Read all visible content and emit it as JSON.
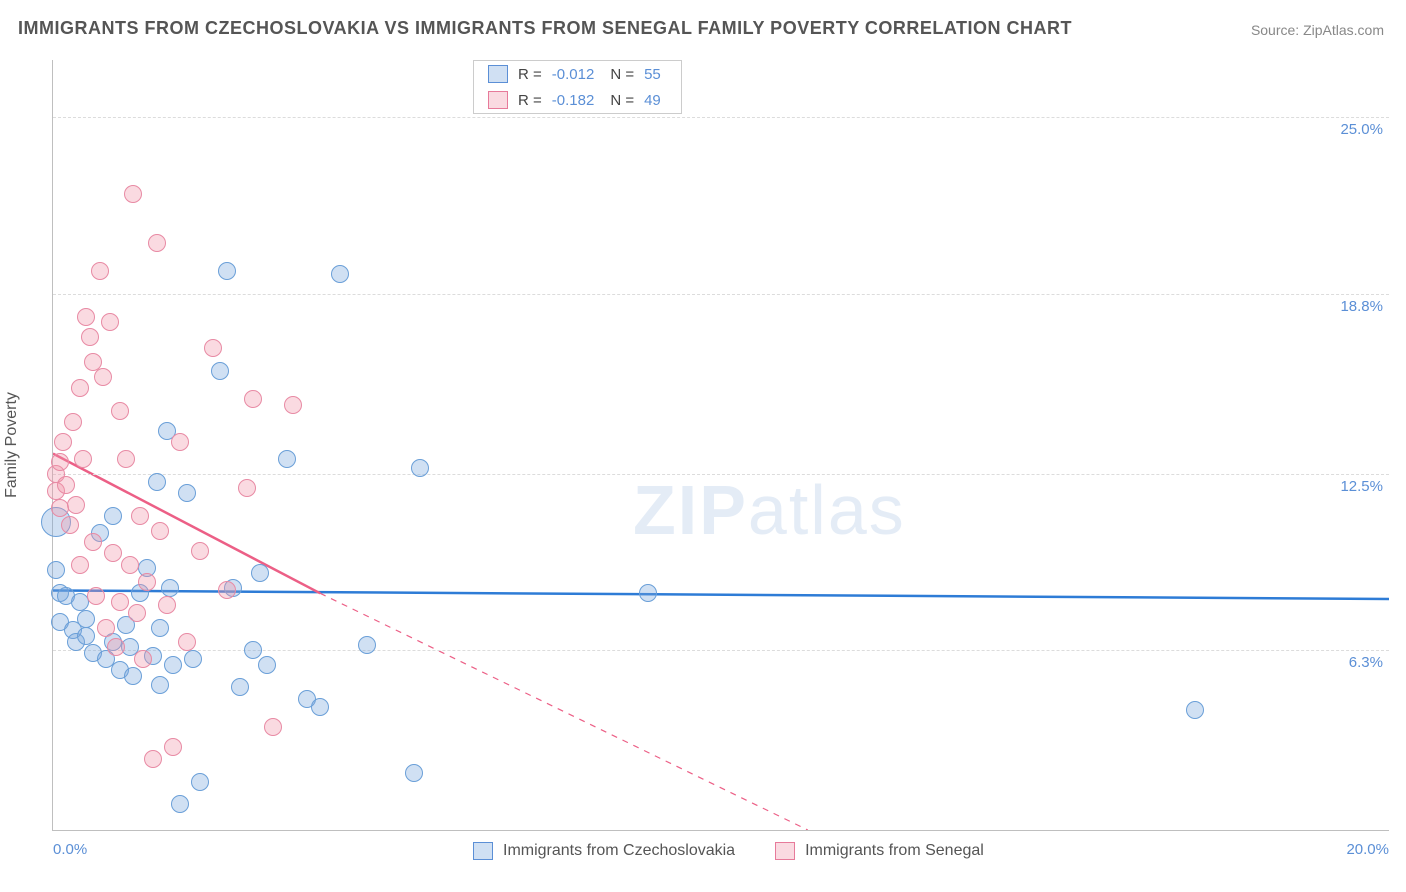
{
  "title": "IMMIGRANTS FROM CZECHOSLOVAKIA VS IMMIGRANTS FROM SENEGAL FAMILY POVERTY CORRELATION CHART",
  "source": "Source: ZipAtlas.com",
  "watermark_bold": "ZIP",
  "watermark_thin": "atlas",
  "y_axis_title": "Family Poverty",
  "chart": {
    "type": "scatter",
    "background_color": "#ffffff",
    "grid_color": "#dcdcdc",
    "axis_color": "#bfbfbf",
    "tick_label_color": "#5b8fd6",
    "tick_fontsize": 15,
    "xlim": [
      0,
      20
    ],
    "ylim": [
      0,
      27
    ],
    "x_ticks": [
      {
        "value": 0,
        "label": "0.0%"
      },
      {
        "value": 20,
        "label": "20.0%"
      }
    ],
    "y_ticks": [
      {
        "value": 6.3,
        "label": "6.3%"
      },
      {
        "value": 12.5,
        "label": "12.5%"
      },
      {
        "value": 18.8,
        "label": "18.8%"
      },
      {
        "value": 25.0,
        "label": "25.0%"
      }
    ],
    "marker_radius": 8,
    "series": [
      {
        "key": "czech",
        "label": "Immigrants from Czechoslovakia",
        "color_fill": "rgba(120,165,220,0.35)",
        "color_stroke": "#6a9fd8",
        "trend_color": "#2e7cd6",
        "trend_width": 2.5,
        "R": "-0.012",
        "N": "55",
        "trend": {
          "x1": 0,
          "y1": 8.4,
          "x2": 20,
          "y2": 8.1,
          "dash": "none"
        },
        "points": [
          {
            "x": 0.05,
            "y": 10.8,
            "r": 14
          },
          {
            "x": 0.05,
            "y": 9.1
          },
          {
            "x": 0.1,
            "y": 8.3
          },
          {
            "x": 0.1,
            "y": 7.3
          },
          {
            "x": 0.2,
            "y": 8.2
          },
          {
            "x": 0.3,
            "y": 7.0
          },
          {
            "x": 0.35,
            "y": 6.6
          },
          {
            "x": 0.4,
            "y": 8.0
          },
          {
            "x": 0.5,
            "y": 6.8
          },
          {
            "x": 0.5,
            "y": 7.4
          },
          {
            "x": 0.6,
            "y": 6.2
          },
          {
            "x": 0.7,
            "y": 10.4
          },
          {
            "x": 0.8,
            "y": 6.0
          },
          {
            "x": 0.9,
            "y": 11.0
          },
          {
            "x": 0.9,
            "y": 6.6
          },
          {
            "x": 1.0,
            "y": 5.6
          },
          {
            "x": 1.1,
            "y": 7.2
          },
          {
            "x": 1.15,
            "y": 6.4
          },
          {
            "x": 1.2,
            "y": 5.4
          },
          {
            "x": 1.3,
            "y": 8.3
          },
          {
            "x": 1.4,
            "y": 9.2
          },
          {
            "x": 1.5,
            "y": 6.1
          },
          {
            "x": 1.55,
            "y": 12.2
          },
          {
            "x": 1.6,
            "y": 5.1
          },
          {
            "x": 1.6,
            "y": 7.1
          },
          {
            "x": 1.7,
            "y": 14.0
          },
          {
            "x": 1.75,
            "y": 8.5
          },
          {
            "x": 1.8,
            "y": 5.8
          },
          {
            "x": 1.9,
            "y": 0.9
          },
          {
            "x": 2.0,
            "y": 11.8
          },
          {
            "x": 2.1,
            "y": 6.0
          },
          {
            "x": 2.2,
            "y": 1.7
          },
          {
            "x": 2.5,
            "y": 16.1
          },
          {
            "x": 2.6,
            "y": 19.6
          },
          {
            "x": 2.7,
            "y": 8.5
          },
          {
            "x": 2.8,
            "y": 5.0
          },
          {
            "x": 3.0,
            "y": 6.3
          },
          {
            "x": 3.1,
            "y": 9.0
          },
          {
            "x": 3.2,
            "y": 5.8
          },
          {
            "x": 3.5,
            "y": 13.0
          },
          {
            "x": 3.8,
            "y": 4.6
          },
          {
            "x": 4.0,
            "y": 4.3
          },
          {
            "x": 4.3,
            "y": 19.5
          },
          {
            "x": 4.7,
            "y": 6.5
          },
          {
            "x": 5.4,
            "y": 2.0
          },
          {
            "x": 5.5,
            "y": 12.7
          },
          {
            "x": 8.9,
            "y": 8.3
          },
          {
            "x": 17.1,
            "y": 4.2
          }
        ]
      },
      {
        "key": "senegal",
        "label": "Immigrants from Senegal",
        "color_fill": "rgba(240,150,170,0.35)",
        "color_stroke": "#e88aa4",
        "trend_color": "#ec5f86",
        "trend_width": 2.5,
        "R": "-0.182",
        "N": "49",
        "trend_solid": {
          "x1": 0,
          "y1": 13.2,
          "x2": 4.0,
          "y2": 8.3
        },
        "trend_dash": {
          "x1": 4.0,
          "y1": 8.3,
          "x2": 11.3,
          "y2": 0.0
        },
        "points": [
          {
            "x": 0.05,
            "y": 12.5
          },
          {
            "x": 0.05,
            "y": 11.9
          },
          {
            "x": 0.1,
            "y": 12.9
          },
          {
            "x": 0.1,
            "y": 11.3
          },
          {
            "x": 0.15,
            "y": 13.6
          },
          {
            "x": 0.2,
            "y": 12.1
          },
          {
            "x": 0.25,
            "y": 10.7
          },
          {
            "x": 0.3,
            "y": 14.3
          },
          {
            "x": 0.35,
            "y": 11.4
          },
          {
            "x": 0.4,
            "y": 15.5
          },
          {
            "x": 0.4,
            "y": 9.3
          },
          {
            "x": 0.45,
            "y": 13.0
          },
          {
            "x": 0.5,
            "y": 18.0
          },
          {
            "x": 0.55,
            "y": 17.3
          },
          {
            "x": 0.6,
            "y": 16.4
          },
          {
            "x": 0.6,
            "y": 10.1
          },
          {
            "x": 0.65,
            "y": 8.2
          },
          {
            "x": 0.7,
            "y": 19.6
          },
          {
            "x": 0.75,
            "y": 15.9
          },
          {
            "x": 0.8,
            "y": 7.1
          },
          {
            "x": 0.85,
            "y": 17.8
          },
          {
            "x": 0.9,
            "y": 9.7
          },
          {
            "x": 0.95,
            "y": 6.4
          },
          {
            "x": 1.0,
            "y": 14.7
          },
          {
            "x": 1.0,
            "y": 8.0
          },
          {
            "x": 1.1,
            "y": 13.0
          },
          {
            "x": 1.15,
            "y": 9.3
          },
          {
            "x": 1.2,
            "y": 22.3
          },
          {
            "x": 1.25,
            "y": 7.6
          },
          {
            "x": 1.3,
            "y": 11.0
          },
          {
            "x": 1.35,
            "y": 6.0
          },
          {
            "x": 1.4,
            "y": 8.7
          },
          {
            "x": 1.5,
            "y": 2.5
          },
          {
            "x": 1.55,
            "y": 20.6
          },
          {
            "x": 1.6,
            "y": 10.5
          },
          {
            "x": 1.7,
            "y": 7.9
          },
          {
            "x": 1.8,
            "y": 2.9
          },
          {
            "x": 1.9,
            "y": 13.6
          },
          {
            "x": 2.0,
            "y": 6.6
          },
          {
            "x": 2.2,
            "y": 9.8
          },
          {
            "x": 2.4,
            "y": 16.9
          },
          {
            "x": 2.6,
            "y": 8.4
          },
          {
            "x": 2.9,
            "y": 12.0
          },
          {
            "x": 3.0,
            "y": 15.1
          },
          {
            "x": 3.3,
            "y": 3.6
          },
          {
            "x": 3.6,
            "y": 14.9
          }
        ]
      }
    ]
  },
  "legend_top": {
    "r_label": "R =",
    "n_label": "N ="
  }
}
